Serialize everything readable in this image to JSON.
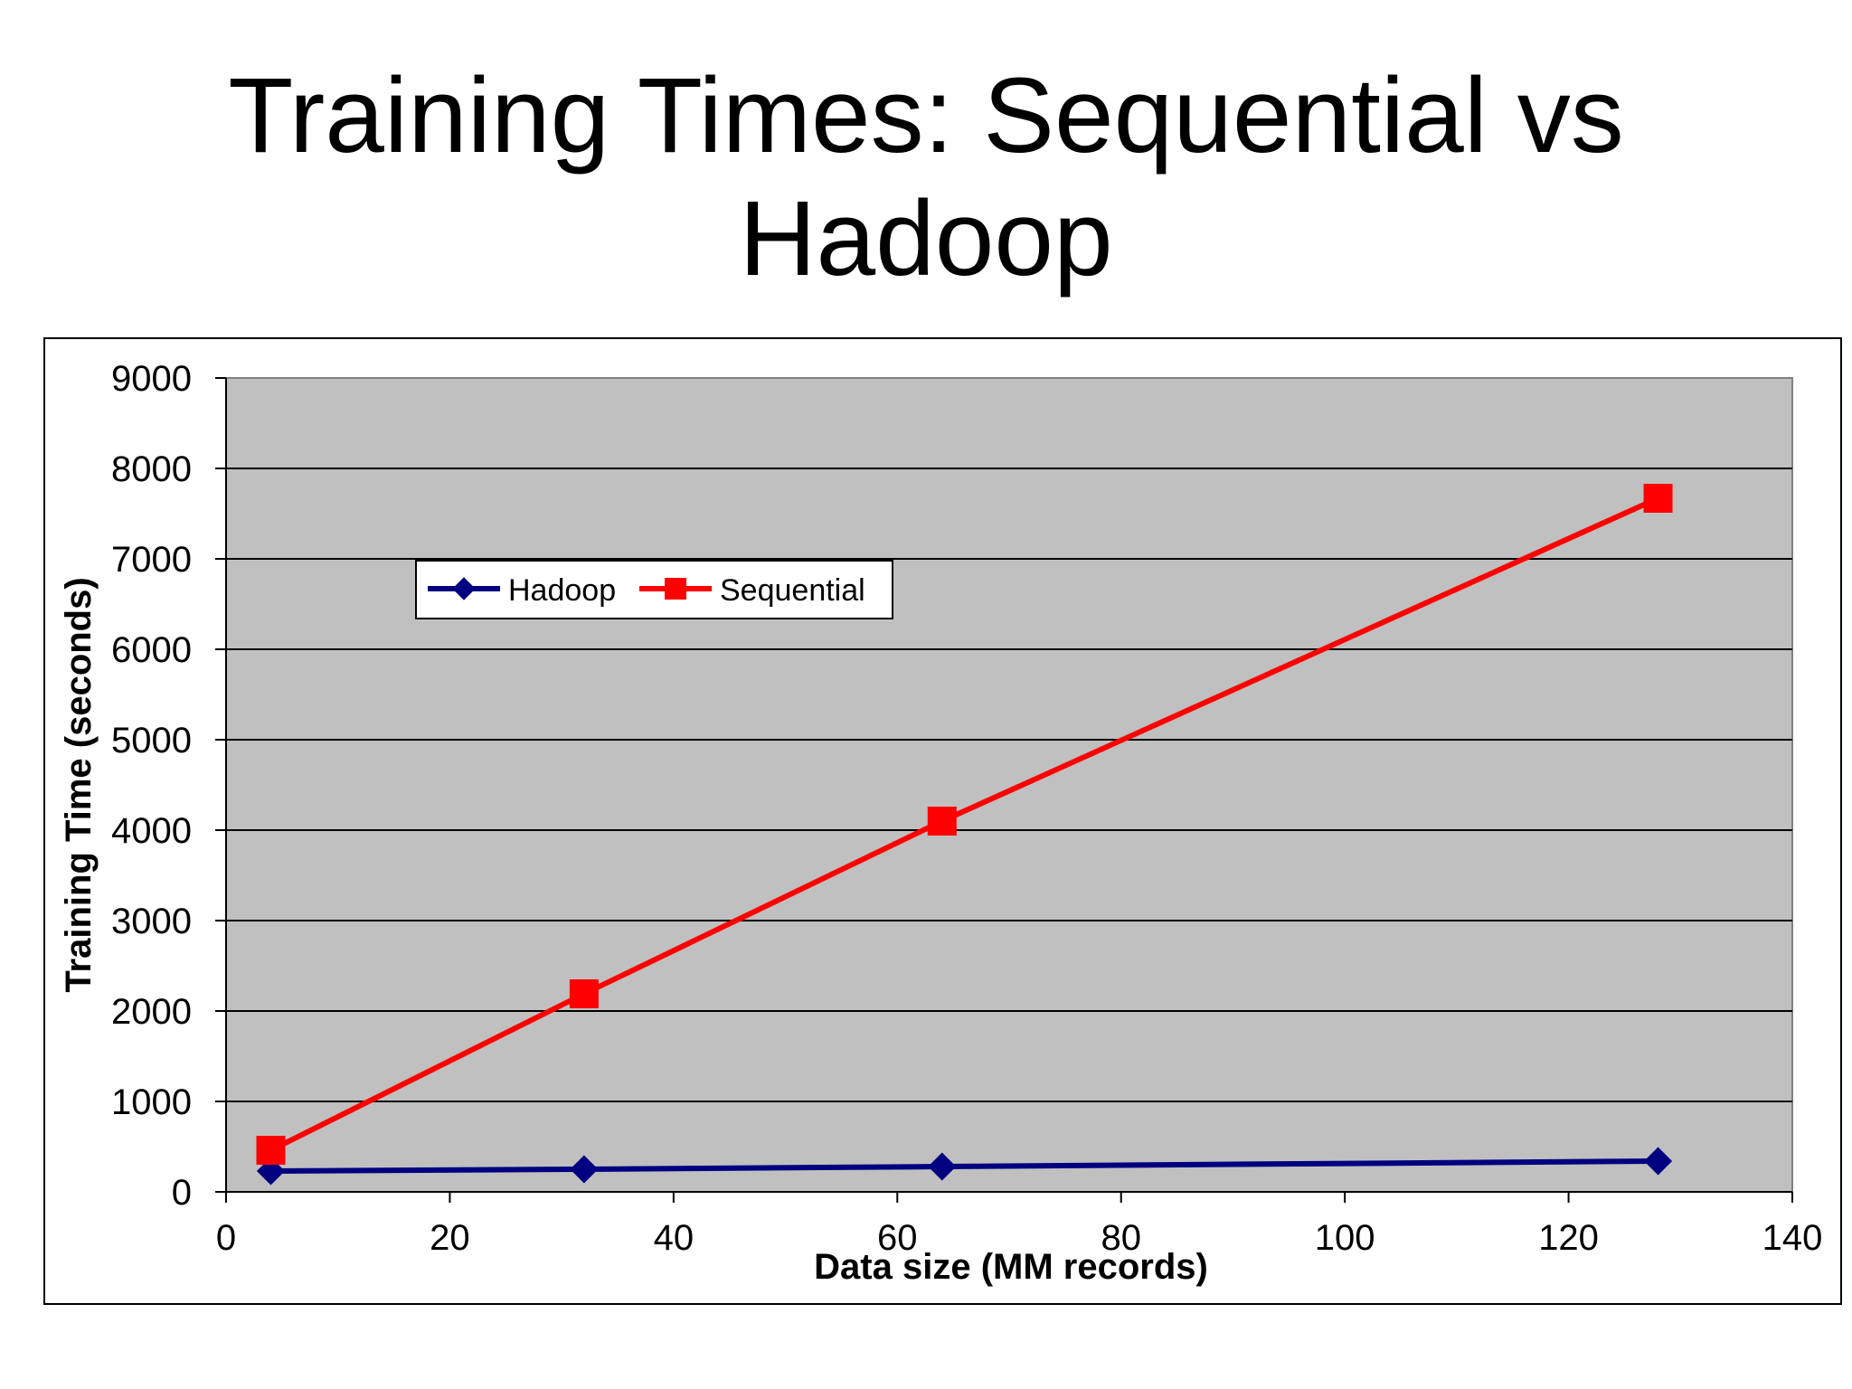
{
  "slide": {
    "title_line1": "Training Times: Sequential vs",
    "title_line2": "Hadoop"
  },
  "chart_data": {
    "type": "line",
    "xlabel": "Data size (MM records)",
    "ylabel": "Training Time (seconds)",
    "xlim": [
      0,
      140
    ],
    "ylim": [
      0,
      9000
    ],
    "xticks": [
      0,
      20,
      40,
      60,
      80,
      100,
      120,
      140
    ],
    "yticks": [
      0,
      1000,
      2000,
      3000,
      4000,
      5000,
      6000,
      7000,
      8000,
      9000
    ],
    "grid": "horizontal",
    "legend_placement": "upper-left",
    "plot_background": "#c0c0c0",
    "series": [
      {
        "name": "Hadoop",
        "color": "#000080",
        "marker": "diamond",
        "x": [
          4,
          32,
          64,
          128
        ],
        "y": [
          230,
          250,
          280,
          340
        ]
      },
      {
        "name": "Sequential",
        "color": "#ff0000",
        "marker": "square",
        "x": [
          4,
          32,
          64,
          128
        ],
        "y": [
          460,
          2190,
          4100,
          7670
        ]
      }
    ]
  }
}
